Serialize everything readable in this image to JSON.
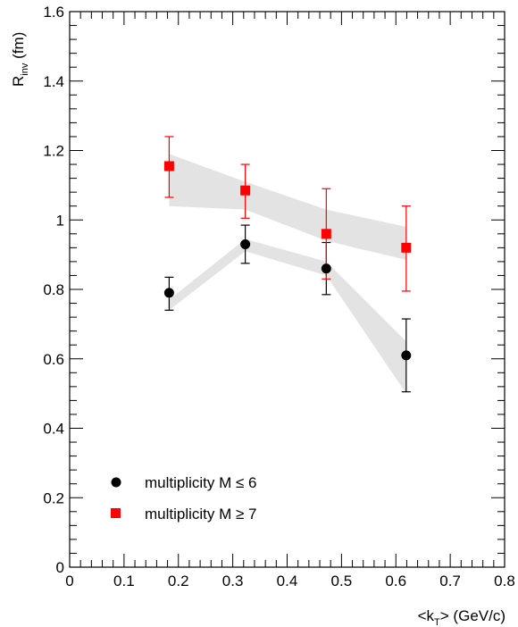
{
  "chart_data": {
    "type": "scatter",
    "title": "",
    "xlabel": {
      "main": "<k",
      "sub": "T",
      "rest": "> (GeV/c)"
    },
    "ylabel": {
      "main": "R",
      "sub": "inv",
      "rest": " (fm)"
    },
    "xlim": [
      0,
      0.8
    ],
    "ylim": [
      0,
      1.6
    ],
    "xticks": [
      "0",
      "0.1",
      "0.2",
      "0.3",
      "0.4",
      "0.5",
      "0.6",
      "0.7",
      "0.8"
    ],
    "yticks": [
      "0",
      "0.2",
      "0.4",
      "0.6",
      "0.8",
      "1",
      "1.2",
      "1.4",
      "1.6"
    ],
    "grid": false,
    "legend_position": "bottom-left",
    "series": [
      {
        "name": "multiplicity M ≤ 6",
        "marker": "circle",
        "color": "#000000",
        "band_color": "#e3e3e3",
        "x": [
          0.183,
          0.323,
          0.472,
          0.619
        ],
        "y": [
          0.79,
          0.93,
          0.86,
          0.61
        ],
        "yerr_low": [
          0.05,
          0.055,
          0.075,
          0.105
        ],
        "yerr_high": [
          0.045,
          0.055,
          0.075,
          0.105
        ],
        "band_low": [
          0.74,
          0.91,
          0.84,
          0.5
        ],
        "band_high": [
          0.77,
          0.945,
          0.88,
          0.65
        ]
      },
      {
        "name": "multiplicity M ≥ 7",
        "marker": "square",
        "color": "#ff0000",
        "band_color": "#e3e3e3",
        "x": [
          0.183,
          0.323,
          0.472,
          0.619
        ],
        "y": [
          1.155,
          1.085,
          0.96,
          0.92
        ],
        "yerr_low": [
          0.09,
          0.08,
          0.13,
          0.125
        ],
        "yerr_high": [
          0.085,
          0.075,
          0.13,
          0.12
        ],
        "band_low": [
          1.04,
          1.03,
          0.94,
          0.885
        ],
        "band_high": [
          1.19,
          1.11,
          1.03,
          0.98
        ]
      }
    ]
  }
}
